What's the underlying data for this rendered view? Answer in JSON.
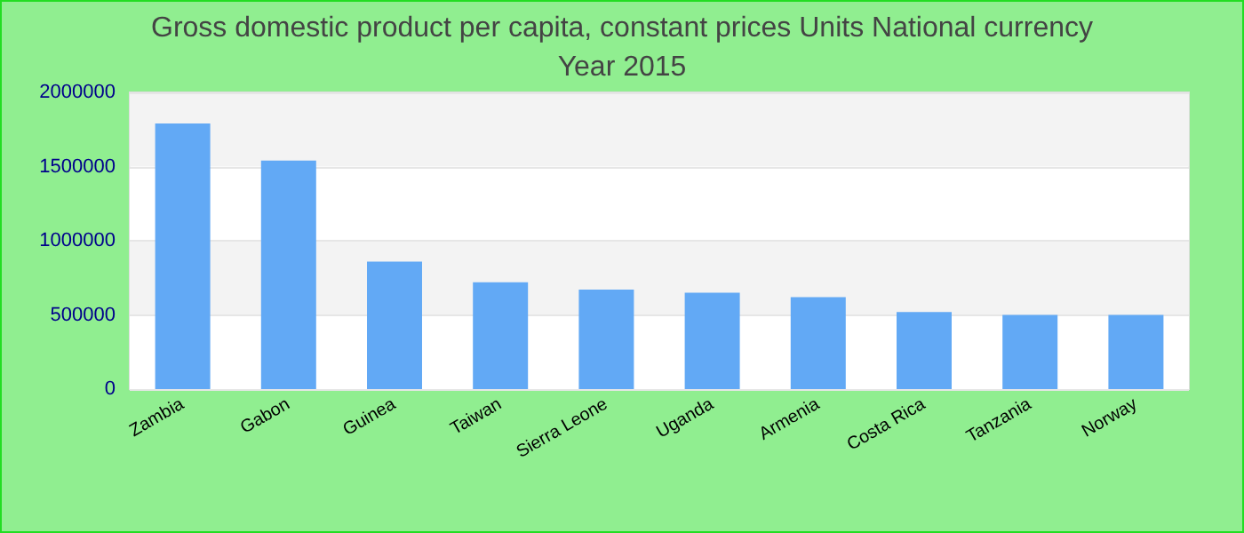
{
  "chart_data": {
    "type": "bar",
    "title": "Gross domestic product per capita, constant prices Units National currency",
    "subtitle": "Year 2015",
    "categories": [
      "Zambia",
      "Gabon",
      "Guinea",
      "Taiwan",
      "Sierra Leone",
      "Uganda",
      "Armenia",
      "Costa Rica",
      "Tanzania",
      "Norway"
    ],
    "values": [
      1790000,
      1540000,
      860000,
      720000,
      670000,
      650000,
      620000,
      520000,
      500000,
      500000
    ],
    "color": "#62a9f5",
    "ylim": [
      0,
      2000000
    ],
    "yticks": [
      0,
      500000,
      1000000,
      1500000,
      2000000
    ],
    "grid": "y"
  }
}
